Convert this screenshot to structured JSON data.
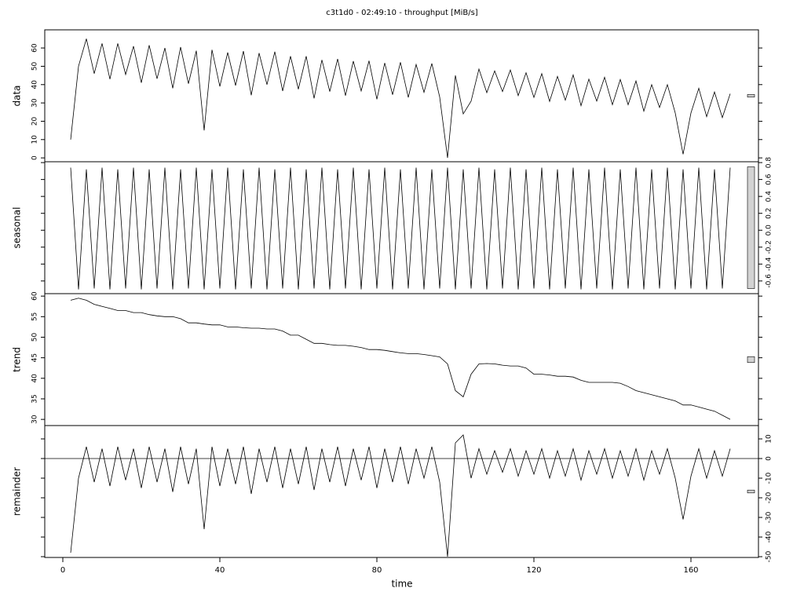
{
  "chart_data": {
    "type": "line",
    "title": "c3t1d0 - 02:49:10 - throughput [MiB/s]",
    "xlabel": "time",
    "xlim": [
      -4.6,
      177.2
    ],
    "xticks": [
      0,
      40,
      80,
      120,
      160
    ],
    "x": [
      2,
      4,
      6,
      8,
      10,
      12,
      14,
      16,
      18,
      20,
      22,
      24,
      26,
      28,
      30,
      32,
      34,
      36,
      38,
      40,
      42,
      44,
      46,
      48,
      50,
      52,
      54,
      56,
      58,
      60,
      62,
      64,
      66,
      68,
      70,
      72,
      74,
      76,
      78,
      80,
      82,
      84,
      86,
      88,
      90,
      92,
      94,
      96,
      98,
      100,
      102,
      104,
      106,
      108,
      110,
      112,
      114,
      116,
      118,
      120,
      122,
      124,
      126,
      128,
      130,
      132,
      134,
      136,
      138,
      140,
      142,
      144,
      146,
      148,
      150,
      152,
      154,
      156,
      158,
      160,
      162,
      164,
      166,
      168,
      170
    ],
    "color": "#000000",
    "panels": [
      {
        "label": "data",
        "axis_side": "left",
        "ylim": [
          -2.1,
          69.9
        ],
        "yticks": [
          0,
          10,
          20,
          30,
          40,
          50,
          60
        ],
        "values": [
          10,
          50,
          65,
          46,
          62.5,
          43,
          62.5,
          45.5,
          61,
          41,
          61.5,
          43.2,
          60,
          38,
          60.5,
          40.5,
          58.5,
          15,
          59,
          39,
          57.5,
          39.5,
          58.3,
          34.2,
          57.2,
          40,
          58,
          36.5,
          55.5,
          37.5,
          55.5,
          32.5,
          53.5,
          36.2,
          54,
          34,
          52.8,
          36.5,
          53,
          32,
          51.8,
          34.5,
          52.2,
          33,
          51,
          35.8,
          51.5,
          33.2,
          0,
          45,
          24,
          31,
          48.5,
          35.6,
          47.5,
          36.2,
          48,
          34,
          46.5,
          33,
          46,
          30.8,
          44.5,
          31.5,
          45.3,
          28.5,
          43,
          31,
          44,
          29,
          42.8,
          29,
          42,
          25.5,
          40,
          27.5,
          40,
          24.5,
          2,
          24.5,
          38,
          22.5,
          36,
          22,
          35
        ]
      },
      {
        "label": "seasonal",
        "axis_side": "right",
        "ylim": [
          -0.75,
          0.81
        ],
        "yticks": [
          0.8,
          0.6,
          0.4,
          0.2,
          {
            "value": 0,
            "label": "0.0"
          },
          -0.2,
          -0.4,
          -0.6
        ],
        "values": [
          0.74,
          -0.7,
          0.72,
          -0.69,
          0.74,
          -0.7,
          0.72,
          -0.69,
          0.74,
          -0.7,
          0.72,
          -0.69,
          0.74,
          -0.7,
          0.72,
          -0.69,
          0.74,
          -0.7,
          0.72,
          -0.69,
          0.74,
          -0.7,
          0.72,
          -0.69,
          0.74,
          -0.7,
          0.72,
          -0.69,
          0.74,
          -0.7,
          0.72,
          -0.69,
          0.74,
          -0.7,
          0.72,
          -0.69,
          0.74,
          -0.7,
          0.72,
          -0.69,
          0.74,
          -0.7,
          0.72,
          -0.69,
          0.74,
          -0.7,
          0.72,
          -0.69,
          0.74,
          -0.7,
          0.72,
          -0.69,
          0.74,
          -0.7,
          0.72,
          -0.69,
          0.74,
          -0.7,
          0.72,
          -0.69,
          0.74,
          -0.7,
          0.72,
          -0.69,
          0.74,
          -0.7,
          0.72,
          -0.69,
          0.74,
          -0.7,
          0.72,
          -0.69,
          0.74,
          -0.7,
          0.72,
          -0.69,
          0.74,
          -0.7,
          0.72,
          -0.69,
          0.74,
          -0.7,
          0.72,
          -0.69,
          0.74
        ]
      },
      {
        "label": "trend",
        "axis_side": "left",
        "ylim": [
          28.5,
          60.6
        ],
        "yticks": [
          60,
          55,
          50,
          45,
          40,
          35,
          30
        ],
        "values": [
          59,
          59.5,
          59,
          58,
          57.5,
          57,
          56.5,
          56.5,
          56,
          56,
          55.5,
          55.2,
          55,
          55,
          54.5,
          53.5,
          53.5,
          53.2,
          53,
          53,
          52.5,
          52.5,
          52.3,
          52.2,
          52.2,
          52,
          52,
          51.5,
          50.5,
          50.5,
          49.5,
          48.5,
          48.5,
          48.2,
          48,
          48,
          47.8,
          47.5,
          47,
          47,
          46.8,
          46.5,
          46.2,
          46,
          46,
          45.8,
          45.5,
          45.2,
          43.5,
          37,
          35.5,
          41,
          43.5,
          43.6,
          43.5,
          43.2,
          43,
          43,
          42.5,
          41,
          41,
          40.8,
          40.5,
          40.5,
          40.3,
          39.5,
          39,
          39,
          39,
          39,
          38.8,
          38,
          37,
          36.5,
          36,
          35.5,
          35,
          34.5,
          33.5,
          33.5,
          33,
          32.5,
          32,
          31,
          30
        ]
      },
      {
        "label": "remainder",
        "axis_side": "right",
        "zero_line": true,
        "ylim": [
          -50.4,
          16.8
        ],
        "yticks": [
          10,
          0,
          -10,
          -20,
          -30,
          -40,
          -50
        ],
        "values": [
          -48,
          -10,
          6,
          -12,
          5,
          -14,
          6,
          -11,
          5,
          -15,
          6,
          -12,
          5,
          -17,
          6,
          -13,
          5,
          -36,
          6,
          -14,
          5,
          -13,
          6,
          -18,
          5,
          -12,
          6,
          -15,
          5,
          -13,
          6,
          -16,
          5,
          -12,
          6,
          -14,
          5,
          -11,
          6,
          -15,
          5,
          -12,
          6,
          -13,
          5,
          -10,
          6,
          -12,
          -50,
          8,
          12,
          -10,
          5,
          -8,
          4,
          -7,
          5,
          -9,
          4,
          -8,
          5,
          -10,
          4,
          -9,
          5,
          -11,
          4,
          -8,
          5,
          -10,
          4,
          -9,
          5,
          -11,
          4,
          -8,
          5,
          -10,
          -31,
          -9,
          5,
          -10,
          4,
          -9,
          5
        ]
      }
    ]
  }
}
